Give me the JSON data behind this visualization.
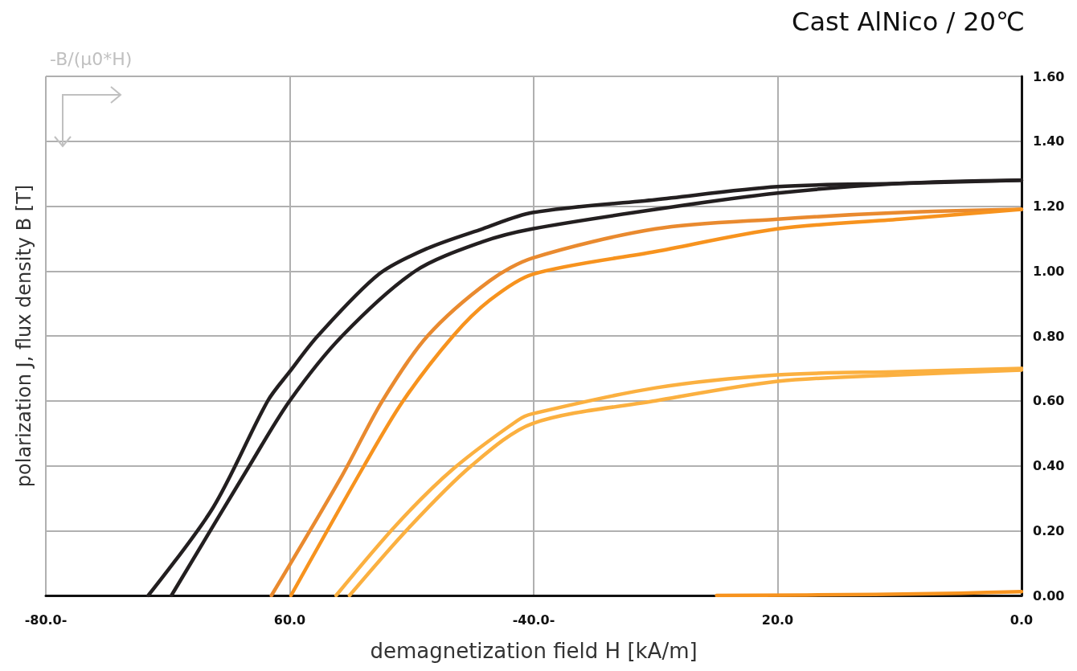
{
  "chart_data": {
    "type": "line",
    "title": "Cast AlNico / 20℃",
    "xlabel": "demagnetization field H [kA/m]",
    "ylabel": "polarization J, flux density B [T]",
    "annotations": [
      "-B/(μ0*H)"
    ],
    "xlim": [
      -80,
      0
    ],
    "xticks": [
      {
        "value": -80,
        "label": "-80.0-"
      },
      {
        "value": -60,
        "label": "60.0"
      },
      {
        "value": -40,
        "label": "-40.0-"
      },
      {
        "value": -20,
        "label": "20.0"
      },
      {
        "value": 0,
        "label": "0.0"
      }
    ],
    "ylim": [
      0,
      1.6
    ],
    "yticks": [
      {
        "value": 0,
        "label": "0.00"
      },
      {
        "value": 0.2,
        "label": "0.20"
      },
      {
        "value": 0.4,
        "label": "0.40"
      },
      {
        "value": 0.6,
        "label": "0.60"
      },
      {
        "value": 0.8,
        "label": "0.80"
      },
      {
        "value": 1.0,
        "label": "1.00"
      },
      {
        "value": 1.2,
        "label": "1.20"
      },
      {
        "value": 1.4,
        "label": "1.40"
      },
      {
        "value": 1.6,
        "label": "1.60"
      }
    ],
    "grid": true,
    "marker": "none",
    "line_style": "solid",
    "series": [
      {
        "color": "#231f20",
        "x": [
          -71.6,
          -66.3,
          -61.8,
          -60,
          -57.7,
          -52.7,
          -48.7,
          -44.2,
          -40.1,
          -30,
          -20,
          -10,
          0
        ],
        "values": [
          0,
          0.27,
          0.6,
          0.69,
          0.8,
          0.99,
          1.07,
          1.13,
          1.18,
          1.22,
          1.26,
          1.27,
          1.28
        ]
      },
      {
        "color": "#231f20",
        "x": [
          -69.7,
          -63.3,
          -60,
          -55.7,
          -49.7,
          -44.2,
          -40.1,
          -30,
          -20,
          -10,
          0
        ],
        "values": [
          0,
          0.4,
          0.6,
          0.8,
          1.0,
          1.09,
          1.13,
          1.19,
          1.24,
          1.27,
          1.28
        ]
      },
      {
        "color": "#e98a2f",
        "x": [
          -61.5,
          -55.7,
          -52.4,
          -48.7,
          -43.6,
          -40.1,
          -30,
          -20,
          -10,
          0
        ],
        "values": [
          0,
          0.37,
          0.6,
          0.8,
          0.97,
          1.04,
          1.13,
          1.16,
          1.18,
          1.19
        ]
      },
      {
        "color": "#f7931e",
        "x": [
          -59.9,
          -53.9,
          -50.7,
          -46.6,
          -43.6,
          -40.1,
          -30,
          -20,
          -10,
          0
        ],
        "values": [
          0,
          0.4,
          0.6,
          0.8,
          0.91,
          0.99,
          1.06,
          1.13,
          1.16,
          1.19
        ]
      },
      {
        "color": "#fbb040",
        "x": [
          -56.2,
          -51.2,
          -46.6,
          -41.3,
          -40.1,
          -30,
          -20,
          -10,
          0
        ],
        "values": [
          0,
          0.22,
          0.39,
          0.54,
          0.56,
          0.64,
          0.68,
          0.69,
          0.7
        ]
      },
      {
        "color": "#fbb040",
        "x": [
          -55.1,
          -50.2,
          -45.1,
          -40.1,
          -30,
          -20,
          -10,
          0
        ],
        "values": [
          0,
          0.21,
          0.4,
          0.53,
          0.6,
          0.66,
          0.68,
          0.695
        ]
      },
      {
        "color": "#f7931e",
        "x": [
          -25,
          -12,
          -5,
          0
        ],
        "values": [
          0,
          0.003,
          0.007,
          0.012
        ]
      }
    ]
  }
}
